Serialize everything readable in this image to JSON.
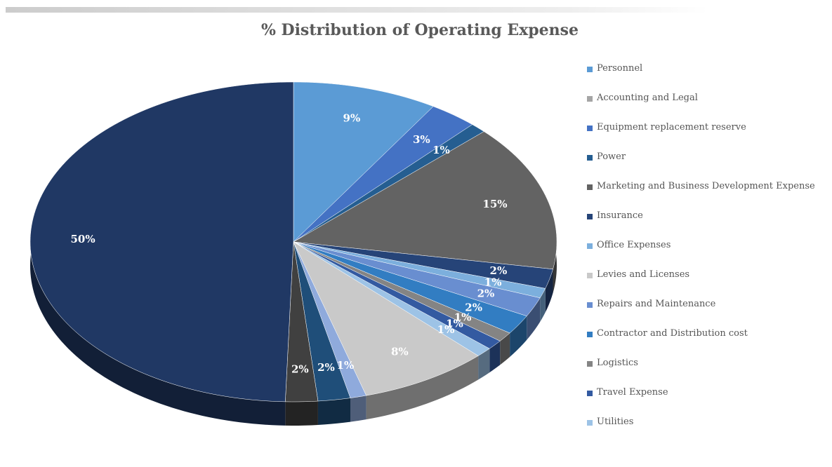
{
  "chart_data": {
    "type": "pie3d",
    "title": "% Distribution of Operating Expense",
    "categories": [
      "Personnel",
      "Accounting and Legal",
      "Equipment replacement reserve",
      "Power",
      "Marketing and Business Development Expense",
      "Insurance",
      "Office Expenses",
      "Levies and Licenses",
      "Repairs and Maintenance",
      "Contractor and Distribution cost",
      "Logistics",
      "Travel Expense",
      "Utilities",
      null,
      null,
      null,
      null,
      null
    ],
    "values": [
      9,
      0,
      3,
      1,
      15,
      2,
      1,
      0,
      2,
      2,
      1,
      1,
      1,
      8,
      1,
      2,
      2,
      50
    ],
    "value_labels": [
      "9%",
      null,
      "3%",
      "1%",
      "15%",
      "2%",
      "1%",
      null,
      "2%",
      "2%",
      "1%",
      "1%",
      "1%",
      "8%",
      "1%",
      "2%",
      "2%",
      "50%"
    ],
    "colors": [
      "#5b9bd5",
      "#a5a5a5",
      "#4472c4",
      "#255e91",
      "#636363",
      "#264478",
      "#7cafdd",
      "#c9c9c9",
      "#698ed0",
      "#327dc2",
      "#848484",
      "#335aa1",
      "#9dc3e6",
      "#c9c9c9",
      "#8faadc",
      "#1f4e79",
      "#404040",
      "#203864"
    ],
    "legend": "right"
  }
}
